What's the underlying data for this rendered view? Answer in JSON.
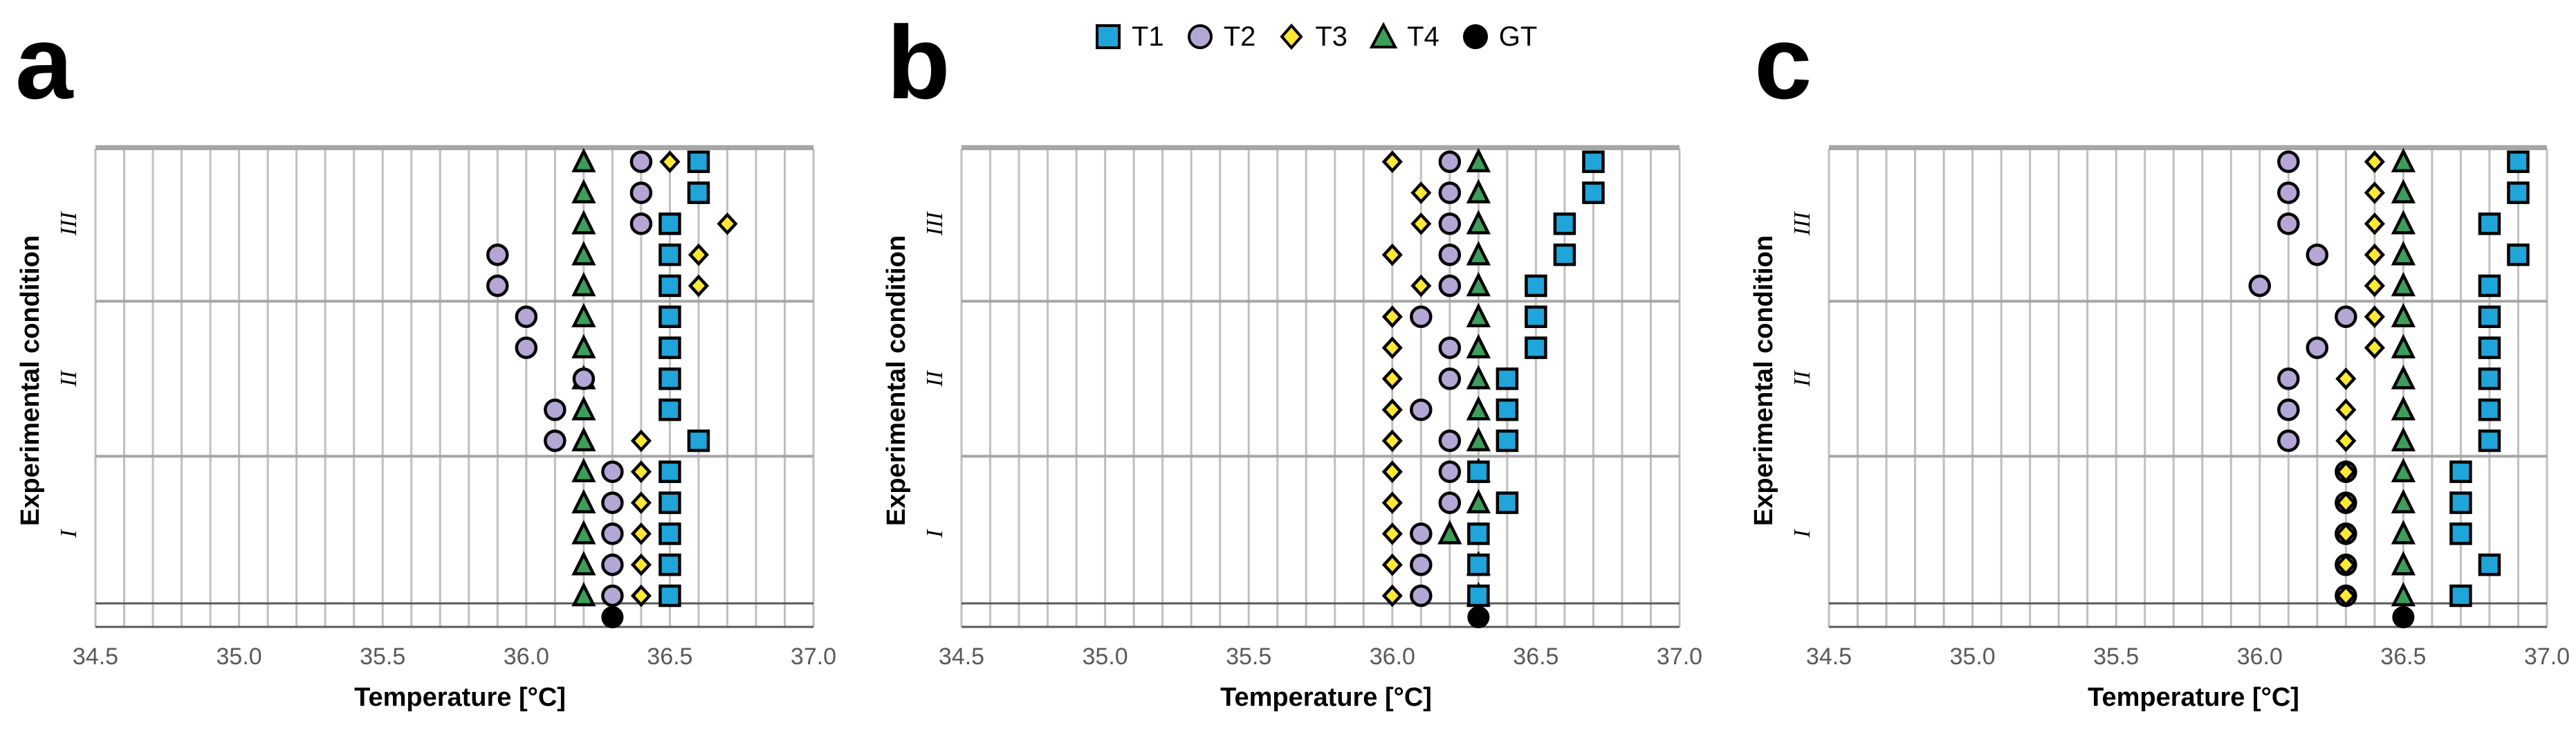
{
  "legend": [
    {
      "name": "T1",
      "marker": "square",
      "fill": "#1FA5D9"
    },
    {
      "name": "T2",
      "marker": "circle",
      "fill": "#B4A7D6"
    },
    {
      "name": "T3",
      "marker": "diamond",
      "fill": "#FFE833"
    },
    {
      "name": "T4",
      "marker": "triangle",
      "fill": "#3C9E5A"
    },
    {
      "name": "GT",
      "marker": "circle",
      "fill": "#000000"
    }
  ],
  "chart_data": [
    {
      "type": "scatter",
      "label": "a",
      "xlabel": "Temperature [°C]",
      "ylabel": "Experimental condition",
      "xlim": [
        34.5,
        37.0
      ],
      "xticks": [
        "34.5",
        "35.0",
        "35.5",
        "36.0",
        "36.5",
        "37.0"
      ],
      "groups": [
        "I",
        "II",
        "III"
      ],
      "rows_per_group": 5,
      "series": {
        "T1": [
          36.5,
          36.5,
          36.5,
          36.5,
          36.5,
          36.6,
          36.5,
          36.5,
          36.5,
          36.5,
          36.5,
          36.5,
          36.5,
          36.6,
          36.6
        ],
        "T2": [
          36.3,
          36.3,
          36.3,
          36.3,
          36.3,
          36.1,
          36.1,
          36.2,
          36.0,
          36.0,
          35.9,
          35.9,
          36.4,
          36.4,
          36.4
        ],
        "T3": [
          36.4,
          36.4,
          36.4,
          36.4,
          36.4,
          36.4,
          36.5,
          36.5,
          36.5,
          36.5,
          36.6,
          36.6,
          36.7,
          36.6,
          36.5
        ],
        "T4": [
          36.2,
          36.2,
          36.2,
          36.2,
          36.2,
          36.2,
          36.2,
          36.2,
          36.2,
          36.2,
          36.2,
          36.2,
          36.2,
          36.2,
          36.2
        ]
      },
      "gt": 36.3
    },
    {
      "type": "scatter",
      "label": "b",
      "xlabel": "Temperature [°C]",
      "ylabel": "Experimental condition",
      "xlim": [
        34.5,
        37.0
      ],
      "xticks": [
        "34.5",
        "35.0",
        "35.5",
        "36.0",
        "36.5",
        "37.0"
      ],
      "groups": [
        "I",
        "II",
        "III"
      ],
      "rows_per_group": 5,
      "series": {
        "T1": [
          36.3,
          36.3,
          36.3,
          36.4,
          36.3,
          36.4,
          36.4,
          36.4,
          36.5,
          36.5,
          36.5,
          36.6,
          36.6,
          36.7,
          36.7
        ],
        "T2": [
          36.1,
          36.1,
          36.1,
          36.2,
          36.2,
          36.2,
          36.1,
          36.2,
          36.2,
          36.1,
          36.2,
          36.2,
          36.2,
          36.2,
          36.2
        ],
        "T3": [
          36.0,
          36.0,
          36.0,
          36.0,
          36.0,
          36.0,
          36.0,
          36.0,
          36.0,
          36.0,
          36.1,
          36.0,
          36.1,
          36.1,
          36.0
        ],
        "T4": [
          36.3,
          36.3,
          36.2,
          36.3,
          36.3,
          36.3,
          36.3,
          36.3,
          36.3,
          36.3,
          36.3,
          36.3,
          36.3,
          36.3,
          36.3
        ]
      },
      "gt": 36.3
    },
    {
      "type": "scatter",
      "label": "c",
      "xlabel": "Temperature [°C]",
      "ylabel": "Experimental condition",
      "xlim": [
        34.5,
        37.0
      ],
      "xticks": [
        "34.5",
        "35.0",
        "35.5",
        "36.0",
        "36.5",
        "37.0"
      ],
      "groups": [
        "I",
        "II",
        "III"
      ],
      "rows_per_group": 5,
      "series": {
        "T1": [
          36.7,
          36.8,
          36.7,
          36.7,
          36.7,
          36.8,
          36.8,
          36.8,
          36.8,
          36.8,
          36.8,
          36.9,
          36.8,
          36.9,
          36.9
        ],
        "T2": [
          36.3,
          36.3,
          36.3,
          36.3,
          36.3,
          36.1,
          36.1,
          36.1,
          36.2,
          36.3,
          36.0,
          36.2,
          36.1,
          36.1,
          36.1
        ],
        "T3": [
          36.3,
          36.3,
          36.3,
          36.3,
          36.3,
          36.3,
          36.3,
          36.3,
          36.4,
          36.4,
          36.4,
          36.4,
          36.4,
          36.4,
          36.4
        ],
        "T4": [
          36.5,
          36.5,
          36.5,
          36.5,
          36.5,
          36.5,
          36.5,
          36.5,
          36.5,
          36.5,
          36.5,
          36.5,
          36.5,
          36.5,
          36.5
        ]
      },
      "gt": 36.5
    }
  ]
}
